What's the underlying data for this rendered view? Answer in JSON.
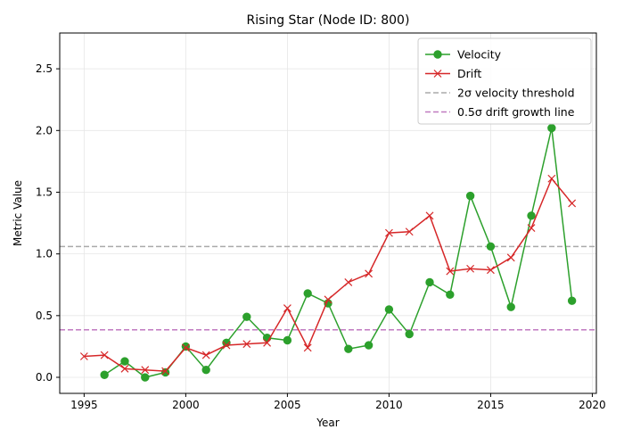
{
  "chart_data": {
    "type": "line",
    "title": "Rising Star (Node ID: 800)",
    "xlabel": "Year",
    "ylabel": "Metric Value",
    "xlim": [
      1993.8,
      2020.2
    ],
    "ylim": [
      -0.13,
      2.79
    ],
    "xticks": [
      1995,
      2000,
      2005,
      2010,
      2015,
      2020
    ],
    "yticks": [
      0.0,
      0.5,
      1.0,
      1.5,
      2.0,
      2.5
    ],
    "xtick_labels": [
      "1995",
      "2000",
      "2005",
      "2010",
      "2015",
      "2020"
    ],
    "ytick_labels": [
      "0.0",
      "0.5",
      "1.0",
      "1.5",
      "2.0",
      "2.5"
    ],
    "grid": true,
    "legend_position": "top-right",
    "series": [
      {
        "name": "Velocity",
        "color": "#2ca02c",
        "marker": "circle",
        "x": [
          1996,
          1997,
          1998,
          1999,
          2000,
          2001,
          2002,
          2003,
          2004,
          2005,
          2006,
          2007,
          2008,
          2009,
          2010,
          2011,
          2012,
          2013,
          2014,
          2015,
          2016,
          2017,
          2018,
          2019
        ],
        "y": [
          0.02,
          0.13,
          0.0,
          0.04,
          0.25,
          0.06,
          0.28,
          0.49,
          0.32,
          0.3,
          0.68,
          0.6,
          0.23,
          0.26,
          0.55,
          0.35,
          0.77,
          0.67,
          1.47,
          1.06,
          0.57,
          1.31,
          2.02,
          0.62
        ]
      },
      {
        "name": "Drift",
        "color": "#d62728",
        "marker": "x",
        "x": [
          1995,
          1996,
          1997,
          1998,
          1999,
          2000,
          2001,
          2002,
          2003,
          2004,
          2005,
          2006,
          2007,
          2008,
          2009,
          2010,
          2011,
          2012,
          2013,
          2014,
          2015,
          2016,
          2017,
          2018,
          2019
        ],
        "y": [
          0.17,
          0.18,
          0.07,
          0.06,
          0.05,
          0.24,
          0.18,
          0.26,
          0.27,
          0.28,
          0.56,
          0.24,
          0.63,
          0.77,
          0.84,
          1.17,
          1.18,
          1.31,
          0.86,
          0.88,
          0.87,
          0.97,
          1.21,
          1.61,
          1.41
        ]
      }
    ],
    "reference_lines": [
      {
        "name": "2σ velocity threshold",
        "value": 1.06,
        "color": "#aaaaaa",
        "style": "dashed"
      },
      {
        "name": "0.5σ drift growth line",
        "value": 0.385,
        "color": "#c07ac0",
        "style": "dashed"
      }
    ]
  }
}
